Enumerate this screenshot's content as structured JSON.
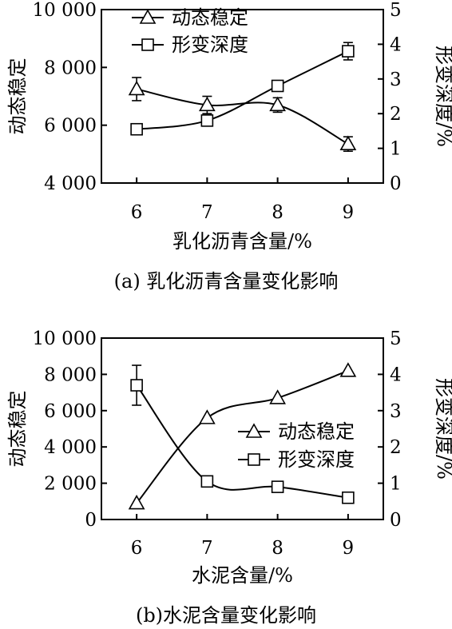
{
  "chart_data": [
    {
      "type": "line",
      "caption": "(a) 乳化沥青含量变化影响",
      "xlabel": "乳化沥青含量/%",
      "ylabel_left": "动态稳定",
      "ylabel_right": "形变深度/%",
      "categories": [
        6,
        7,
        8,
        9
      ],
      "xlim": [
        5.5,
        9.5
      ],
      "ylim_left": [
        4000,
        10000
      ],
      "ylim_right": [
        0,
        5
      ],
      "yticks_left": [
        4000,
        6000,
        8000,
        10000
      ],
      "ytick_labels_left": [
        "4 000",
        "6 000",
        "8 000",
        "10 000"
      ],
      "yticks_right": [
        0,
        1,
        2,
        3,
        4,
        5
      ],
      "ytick_labels_right": [
        "0",
        "1",
        "2",
        "3",
        "4",
        "5"
      ],
      "legend_position": "top-center",
      "series": [
        {
          "name": "动态稳定",
          "axis": "left",
          "marker": "triangle",
          "values": [
            7250,
            6700,
            6700,
            5350
          ],
          "error": [
            400,
            300,
            250,
            250
          ]
        },
        {
          "name": "形变深度",
          "axis": "right",
          "marker": "square",
          "values": [
            1.55,
            1.8,
            2.8,
            3.8
          ],
          "error": [
            0,
            0.1,
            0.15,
            0.25
          ]
        }
      ]
    },
    {
      "type": "line",
      "caption": "(b)水泥含量变化影响",
      "xlabel": "水泥含量/%",
      "ylabel_left": "动态稳定",
      "ylabel_right": "形变深度/%",
      "categories": [
        6,
        7,
        8,
        9
      ],
      "xlim": [
        5.5,
        9.5
      ],
      "ylim_left": [
        0,
        10000
      ],
      "ylim_right": [
        0,
        5
      ],
      "yticks_left": [
        0,
        2000,
        4000,
        6000,
        8000,
        10000
      ],
      "ytick_labels_left": [
        "0",
        "2 000",
        "4 000",
        "6 000",
        "8 000",
        "10 000"
      ],
      "yticks_right": [
        0,
        1,
        2,
        3,
        4,
        5
      ],
      "ytick_labels_right": [
        "0",
        "1",
        "2",
        "3",
        "4",
        "5"
      ],
      "legend_position": "center-right",
      "series": [
        {
          "name": "动态稳定",
          "axis": "left",
          "marker": "triangle",
          "values": [
            900,
            5600,
            6700,
            8200
          ],
          "error": [
            0,
            0,
            0,
            0
          ]
        },
        {
          "name": "形变深度",
          "axis": "right",
          "marker": "square",
          "values": [
            3.7,
            1.05,
            0.9,
            0.6
          ],
          "error": [
            0.55,
            0,
            0,
            0
          ]
        }
      ]
    }
  ]
}
